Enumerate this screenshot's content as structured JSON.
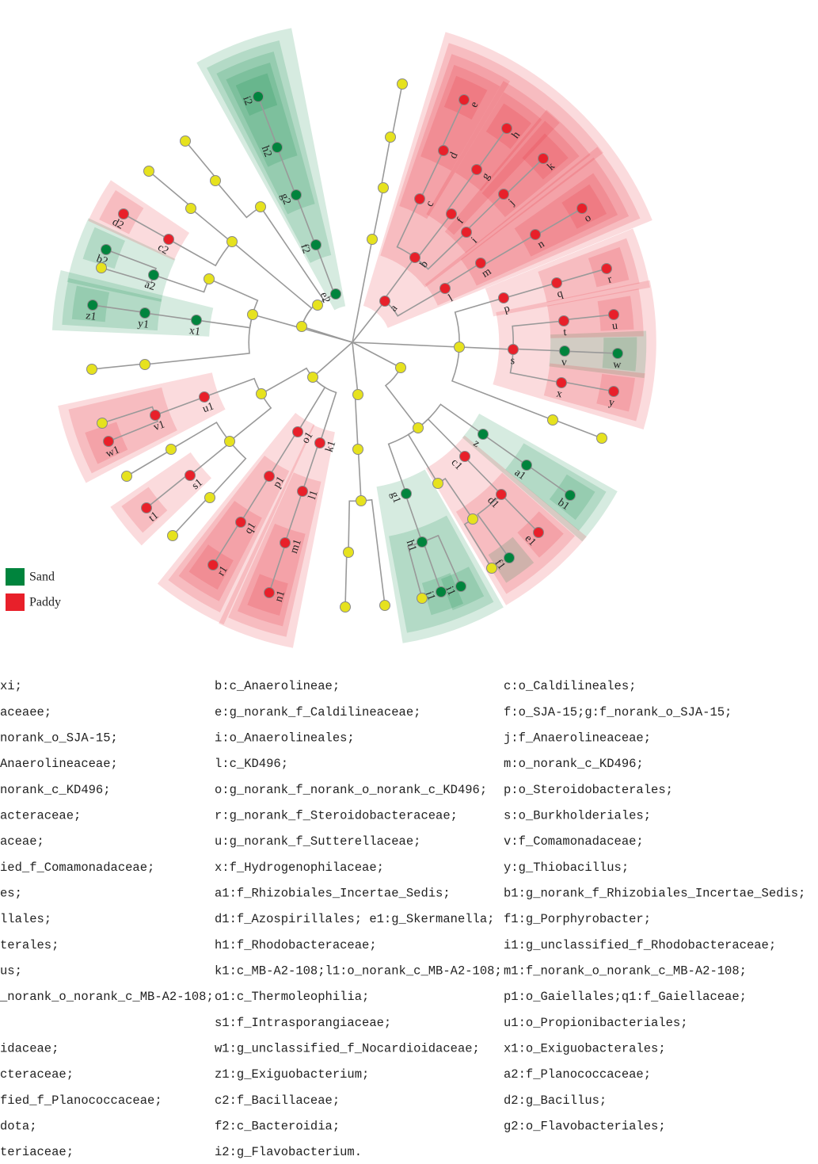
{
  "legend": [
    {
      "label": "Sand",
      "color": "#00843d"
    },
    {
      "label": "Paddy",
      "color": "#e8202a"
    }
  ],
  "clade_labels": [
    {
      "label": "a",
      "group": "Paddy"
    },
    {
      "label": "b",
      "group": "Paddy"
    },
    {
      "label": "c",
      "group": "Paddy"
    },
    {
      "label": "d",
      "group": "Paddy"
    },
    {
      "label": "e",
      "group": "Paddy"
    },
    {
      "label": "f",
      "group": "Paddy"
    },
    {
      "label": "g",
      "group": "Paddy"
    },
    {
      "label": "h",
      "group": "Paddy"
    },
    {
      "label": "i",
      "group": "Paddy"
    },
    {
      "label": "j",
      "group": "Paddy"
    },
    {
      "label": "k",
      "group": "Paddy"
    },
    {
      "label": "l",
      "group": "Paddy"
    },
    {
      "label": "m",
      "group": "Paddy"
    },
    {
      "label": "n",
      "group": "Paddy"
    },
    {
      "label": "o",
      "group": "Paddy"
    },
    {
      "label": "p",
      "group": "Paddy"
    },
    {
      "label": "q",
      "group": "Paddy"
    },
    {
      "label": "r",
      "group": "Paddy"
    },
    {
      "label": "s",
      "group": "Paddy"
    },
    {
      "label": "t",
      "group": "Paddy"
    },
    {
      "label": "u",
      "group": "Paddy"
    },
    {
      "label": "v",
      "group": "Sand"
    },
    {
      "label": "w",
      "group": "Sand"
    },
    {
      "label": "x",
      "group": "Paddy"
    },
    {
      "label": "y",
      "group": "Paddy"
    },
    {
      "label": "z",
      "group": "Sand"
    },
    {
      "label": "a1",
      "group": "Sand"
    },
    {
      "label": "b1",
      "group": "Sand"
    },
    {
      "label": "c1",
      "group": "Paddy"
    },
    {
      "label": "d1",
      "group": "Paddy"
    },
    {
      "label": "e1",
      "group": "Paddy"
    },
    {
      "label": "f1",
      "group": "Sand"
    },
    {
      "label": "g1",
      "group": "Sand"
    },
    {
      "label": "h1",
      "group": "Sand"
    },
    {
      "label": "i1",
      "group": "Sand"
    },
    {
      "label": "j1",
      "group": "Sand"
    },
    {
      "label": "k1",
      "group": "Paddy"
    },
    {
      "label": "l1",
      "group": "Paddy"
    },
    {
      "label": "m1",
      "group": "Paddy"
    },
    {
      "label": "n1",
      "group": "Paddy"
    },
    {
      "label": "o1",
      "group": "Paddy"
    },
    {
      "label": "p1",
      "group": "Paddy"
    },
    {
      "label": "q1",
      "group": "Paddy"
    },
    {
      "label": "r1",
      "group": "Paddy"
    },
    {
      "label": "s1",
      "group": "Paddy"
    },
    {
      "label": "t1",
      "group": "Paddy"
    },
    {
      "label": "u1",
      "group": "Paddy"
    },
    {
      "label": "v1",
      "group": "Paddy"
    },
    {
      "label": "w1",
      "group": "Paddy"
    },
    {
      "label": "x1",
      "group": "Sand"
    },
    {
      "label": "y1",
      "group": "Sand"
    },
    {
      "label": "z1",
      "group": "Sand"
    },
    {
      "label": "a2",
      "group": "Sand"
    },
    {
      "label": "b2",
      "group": "Sand"
    },
    {
      "label": "c2",
      "group": "Paddy"
    },
    {
      "label": "d2",
      "group": "Paddy"
    },
    {
      "label": "e2",
      "group": "Sand"
    },
    {
      "label": "f2",
      "group": "Sand"
    },
    {
      "label": "g2",
      "group": "Sand"
    },
    {
      "label": "h2",
      "group": "Sand"
    },
    {
      "label": "i2",
      "group": "Sand"
    }
  ],
  "legend_text": {
    "columns": [
      [
        "xi;",
        "aceaee;",
        "norank_o_SJA-15;",
        "Anaerolineaceae;",
        "norank_c_KD496;",
        "acteraceae;",
        "aceae;",
        "ied_f_Comamonadaceae;",
        "es;",
        "llales;",
        "terales;",
        "us;",
        "_norank_o_norank_c_MB-A2-108;",
        "idaceae;",
        "cteraceae;",
        "fied_f_Planococcaceae;",
        "dota;",
        "teriaceae;"
      ],
      [
        "b:c_Anaerolineae;",
        "e:g_norank_f_Caldilineaceae;",
        "i:o_Anaerolineales;",
        "l:c_KD496;",
        "o:g_norank_f_norank_o_norank_c_KD496;",
        "r:g_norank_f_Steroidobacteraceae;",
        "u:g_norank_f_Sutterellaceae;",
        "x:f_Hydrogenophilaceae;",
        "a1:f_Rhizobiales_Incertae_Sedis;",
        "d1:f_Azospirillales; e1:g_Skermanella;",
        "h1:f_Rhodobacteraceae;",
        "k1:c_MB-A2-108;l1:o_norank_c_MB-A2-108;",
        "o1:c_Thermoleophilia;",
        "s1:f_Intrasporangiaceae;",
        "w1:g_unclassified_f_Nocardioidaceae;",
        "z1:g_Exiguobacterium;",
        "c2:f_Bacillaceae;",
        "f2:c_Bacteroidia;",
        "i2:g_Flavobacterium."
      ],
      [
        "c:o_Caldilineales;",
        "f:o_SJA-15;g:f_norank_o_SJA-15;",
        "j:f_Anaerolineaceae;",
        "m:o_norank_c_KD496;",
        "p:o_Steroidobacterales;",
        "s:o_Burkholderiales;",
        "v:f_Comamonadaceae;",
        "y:g_Thiobacillus;",
        "b1:g_norank_f_Rhizobiales_Incertae_Sedis;",
        "f1:g_Porphyrobacter;",
        "i1:g_unclassified_f_Rhodobacteraceae;",
        "m1:f_norank_o_norank_c_MB-A2-108;",
        "p1:o_Gaiellales;q1:f_Gaiellaceae;",
        "u1:o_Propionibacteriales;",
        "x1:o_Exiguobacterales;",
        "a2:f_Planococcaceae;",
        "d2:g_Bacillus;",
        "g2:o_Flavobacteriales;"
      ]
    ]
  }
}
